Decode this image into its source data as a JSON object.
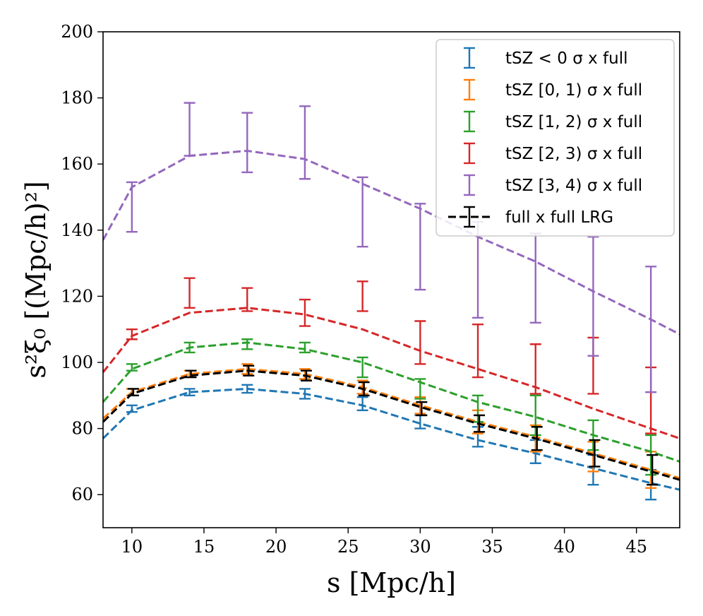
{
  "chart_data": {
    "type": "line",
    "title": "",
    "xlabel": "s [Mpc/h]",
    "ylabel": "s²ξ₀ [(Mpc/h)²]",
    "xlim": [
      8,
      48
    ],
    "ylim": [
      50,
      200
    ],
    "xticks": [
      10,
      15,
      20,
      25,
      30,
      35,
      40,
      45
    ],
    "yticks": [
      60,
      80,
      100,
      120,
      140,
      160,
      180,
      200
    ],
    "legend_position": "top-right",
    "line_x": [
      8,
      10,
      14,
      18,
      22,
      26,
      30,
      34,
      38,
      42,
      46,
      48
    ],
    "point_x": [
      10,
      14,
      18,
      22,
      26,
      30,
      34,
      38,
      42,
      46
    ],
    "series": [
      {
        "name": "tSZ < 0 σ x full",
        "color": "#1f77b4",
        "model": [
          77.0,
          85.5,
          91.0,
          92.0,
          90.5,
          87.0,
          81.5,
          76.5,
          72.5,
          68.0,
          63.5,
          61.5
        ],
        "points": [
          86.0,
          91.0,
          92.0,
          90.5,
          87.5,
          82.0,
          77.5,
          73.0,
          67.5,
          63.0
        ],
        "errors": [
          1.0,
          1.0,
          1.2,
          1.5,
          2.0,
          2.0,
          3.0,
          3.5,
          4.5,
          4.5
        ]
      },
      {
        "name": "tSZ [0, 1) σ x full",
        "color": "#ff7f0e",
        "model": [
          83.0,
          91.0,
          96.5,
          98.0,
          96.5,
          92.5,
          87.0,
          82.0,
          77.5,
          72.5,
          67.5,
          65.0
        ],
        "points": [
          91.0,
          96.5,
          98.0,
          96.5,
          92.5,
          87.0,
          82.0,
          77.0,
          71.5,
          67.5
        ],
        "errors": [
          1.0,
          1.0,
          1.5,
          1.5,
          2.0,
          2.5,
          3.5,
          4.0,
          4.5,
          5.5
        ]
      },
      {
        "name": "tSZ [1, 2) σ x full",
        "color": "#2ca02c",
        "model": [
          88.0,
          98.0,
          104.5,
          106.0,
          104.0,
          100.0,
          94.0,
          88.0,
          83.5,
          78.0,
          73.0,
          70.0
        ],
        "points": [
          98.5,
          104.5,
          105.5,
          104.5,
          98.5,
          92.0,
          86.0,
          84.0,
          78.0,
          72.0
        ],
        "errors": [
          1.0,
          1.5,
          1.5,
          1.5,
          3.0,
          3.0,
          4.0,
          6.0,
          4.5,
          6.0
        ]
      },
      {
        "name": "tSZ [2, 3) σ x full",
        "color": "#d62728",
        "model": [
          97.0,
          108.0,
          115.0,
          116.5,
          114.5,
          110.0,
          103.5,
          98.0,
          92.5,
          86.0,
          80.0,
          77.0
        ],
        "points": [
          108.5,
          121.0,
          119.0,
          115.0,
          120.0,
          106.0,
          103.5,
          98.0,
          99.0,
          88.5
        ],
        "errors": [
          1.5,
          4.5,
          3.5,
          4.0,
          4.5,
          6.5,
          8.0,
          7.5,
          8.5,
          10.0
        ]
      },
      {
        "name": "tSZ [3, 4) σ x full",
        "color": "#9467bd",
        "model": [
          137.0,
          153.0,
          162.5,
          164.0,
          161.5,
          154.0,
          146.5,
          138.0,
          130.5,
          121.5,
          113.0,
          108.5
        ],
        "points": [
          147.0,
          170.5,
          166.5,
          166.5,
          145.5,
          135.0,
          128.0,
          125.5,
          120.0,
          110.0
        ],
        "errors": [
          7.5,
          8.0,
          9.0,
          11.0,
          10.5,
          13.0,
          14.5,
          13.5,
          18.0,
          19.0
        ]
      },
      {
        "name": "full x full LRG",
        "color": "#000000",
        "model": [
          82.0,
          90.5,
          96.0,
          97.5,
          96.0,
          92.0,
          86.5,
          81.5,
          77.0,
          72.0,
          67.0,
          64.5
        ],
        "points": [
          91.0,
          96.5,
          97.5,
          96.0,
          92.0,
          86.0,
          81.5,
          77.0,
          72.5,
          67.5
        ],
        "errors": [
          1.0,
          1.0,
          1.5,
          1.5,
          2.0,
          2.0,
          2.5,
          3.5,
          4.0,
          4.5
        ]
      }
    ]
  }
}
